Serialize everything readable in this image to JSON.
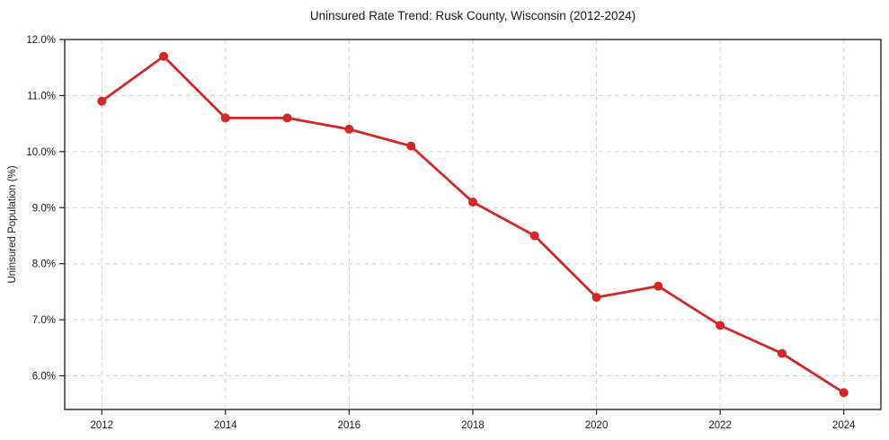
{
  "chart_data": {
    "type": "line",
    "title": "Uninsured Rate Trend: Rusk County, Wisconsin (2012-2024)",
    "xlabel": "",
    "ylabel": "Uninsured Population (%)",
    "x": [
      2012,
      2013,
      2014,
      2015,
      2016,
      2017,
      2018,
      2019,
      2020,
      2021,
      2022,
      2023,
      2024
    ],
    "values": [
      10.9,
      11.7,
      10.6,
      10.6,
      10.4,
      10.1,
      9.1,
      8.5,
      7.4,
      7.6,
      6.9,
      6.4,
      5.7
    ],
    "xlim": [
      2011.4,
      2024.6
    ],
    "ylim": [
      5.4,
      12.0
    ],
    "x_ticks": [
      2012,
      2014,
      2016,
      2018,
      2020,
      2022,
      2024
    ],
    "x_tick_labels": [
      "2012",
      "2014",
      "2016",
      "2018",
      "2020",
      "2022",
      "2024"
    ],
    "y_ticks": [
      6.0,
      7.0,
      8.0,
      9.0,
      10.0,
      11.0,
      12.0
    ],
    "y_tick_labels": [
      "6.0%",
      "7.0%",
      "8.0%",
      "9.0%",
      "10.0%",
      "11.0%",
      "12.0%"
    ],
    "grid": true,
    "legend": false,
    "line_color": "#d62728",
    "marker": "circle",
    "marker_radius": 5,
    "background_color": "#ffffff",
    "text_color": "#1a1a1a"
  }
}
